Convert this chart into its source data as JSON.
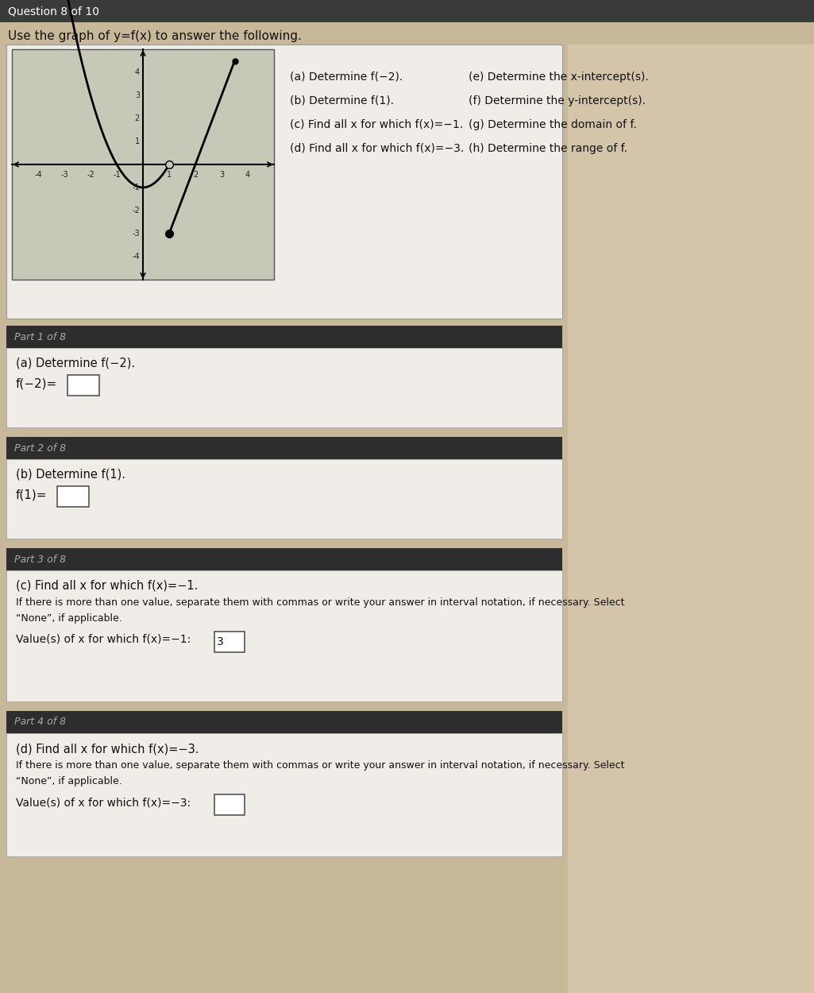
{
  "question_header": "Question 8 of 10",
  "title_text": "Use the graph of y=f(x) to answer the following.",
  "instructions_col1": [
    "(a) Determine f(−2).",
    "(b) Determine f(1).",
    "(c) Find all x for which f(x)=−1.",
    "(d) Find all x for which f(x)=−3."
  ],
  "instructions_col2": [
    "(e) Determine the x-intercept(s).",
    "(f) Determine the y-intercept(s).",
    "(g) Determine the domain of f.",
    "(h) Determine the range of f."
  ],
  "part1_header": "Part 1 of 8",
  "part1_body": "(a) Determine f(−2).",
  "part1_eq": "f(−2)=",
  "part2_header": "Part 2 of 8",
  "part2_body": "(b) Determine f(1).",
  "part2_eq": "f(1)=",
  "part3_header": "Part 3 of 8",
  "part3_body": "(c) Find all x for which f(x)=−1.",
  "part3_inst1": "If there is more than one value, separate them with commas or write your answer in interval notation, if necessary. Select",
  "part3_inst2": "“None”, if applicable.",
  "part3_label": "Value(s) of x for which f(x)=−1:",
  "part3_hint": "3",
  "part4_header": "Part 4 of 8",
  "part4_body": "(d) Find all x for which f(x)=−3.",
  "part4_inst1": "If there is more than one value, separate them with commas or write your answer in interval notation, if necessary. Select",
  "part4_inst2": "“None”, if applicable.",
  "part4_label": "Value(s) of x for which f(x)=−3:",
  "page_bg": "#c8b89a",
  "content_bg": "#d4c5aa",
  "white_bg": "#f0ede8",
  "dark_bar": "#2d2d2d",
  "medium_bar": "#4a4a4a",
  "text_dark": "#111111",
  "graph_bg": "#c8c8b8",
  "graph_grid": "#a0a090"
}
